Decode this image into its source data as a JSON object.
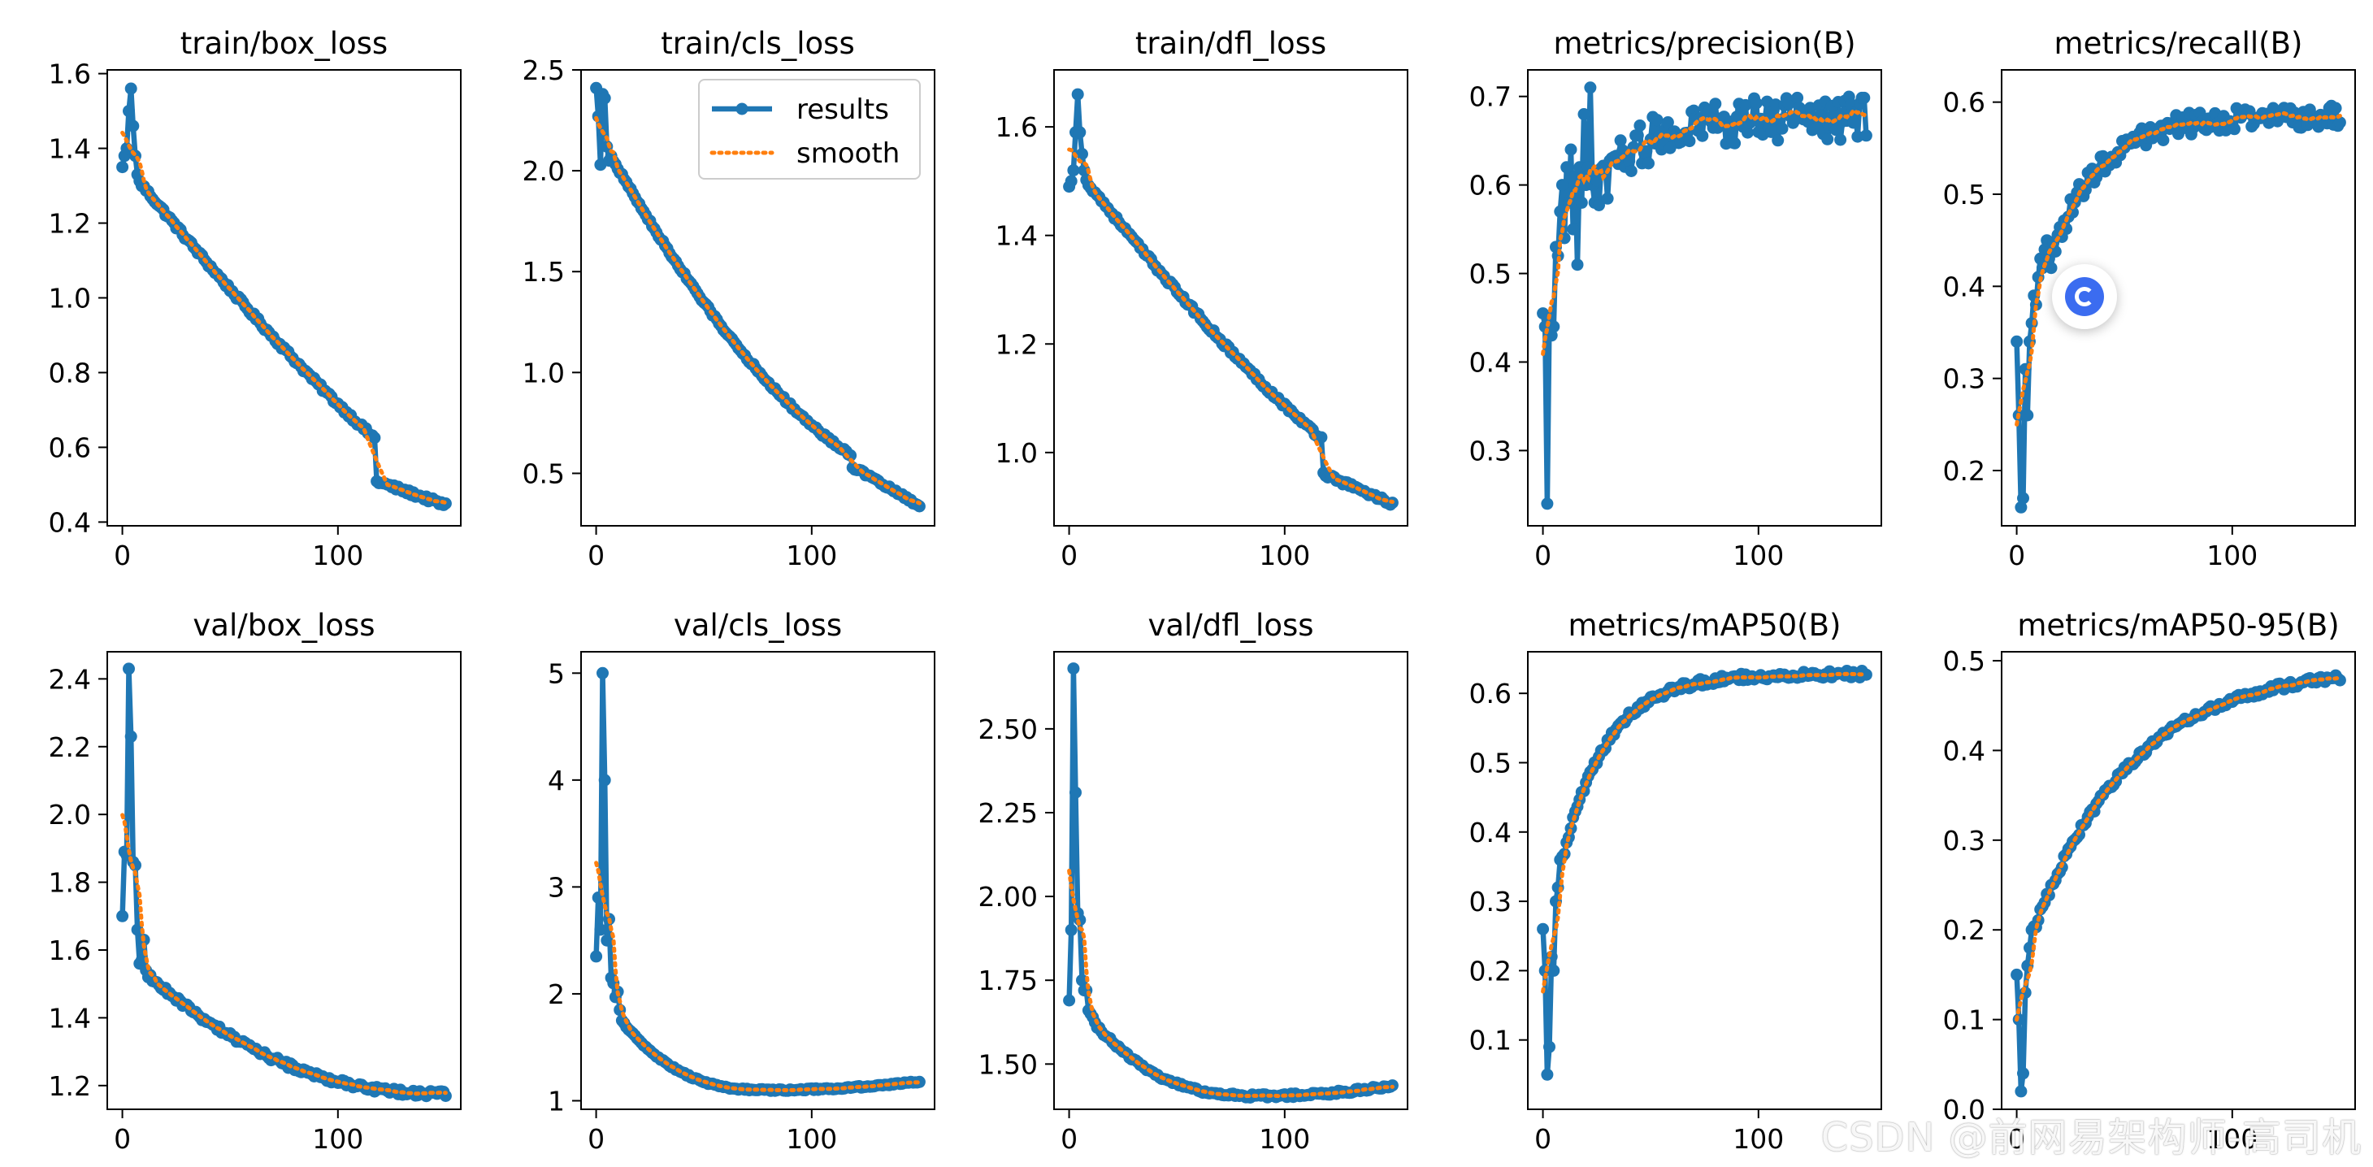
{
  "figure": {
    "legend_results": "results",
    "legend_smooth": "smooth",
    "watermark": "CSDN @前网易架构师-高司机",
    "colors": {
      "results": "#1f77b4",
      "smooth": "#ff7f0e",
      "axis": "#000000",
      "background": "#ffffff"
    }
  },
  "chart_data": [
    {
      "type": "line",
      "title": "train/box_loss",
      "xlim": [
        -7,
        157
      ],
      "ylim": [
        0.39,
        1.61
      ],
      "xticks": [
        0,
        100
      ],
      "yticks": [
        0.4,
        0.6,
        0.8,
        1.0,
        1.2,
        1.4,
        1.6
      ],
      "ytick_labels": [
        "0.4",
        "0.6",
        "0.8",
        "1.0",
        "1.2",
        "1.4",
        "1.6"
      ],
      "spikes": [
        [
          0,
          1.35
        ],
        [
          1,
          1.38
        ],
        [
          2,
          1.4
        ],
        [
          3,
          1.5
        ],
        [
          4,
          1.56
        ],
        [
          5,
          1.46
        ],
        [
          6,
          1.38
        ],
        [
          7,
          1.33
        ]
      ],
      "gen": {
        "kind": "decay",
        "x0": 8,
        "x1": 150,
        "y0": 1.31,
        "y1": 0.445,
        "p": 0.82,
        "step": 118,
        "drop": 0.04,
        "noise": 0.006
      }
    },
    {
      "type": "line",
      "title": "train/cls_loss",
      "legend": true,
      "xlim": [
        -7,
        157
      ],
      "ylim": [
        0.24,
        2.5
      ],
      "xticks": [
        0,
        100
      ],
      "yticks": [
        0.5,
        1.0,
        1.5,
        2.0,
        2.5
      ],
      "ytick_labels": [
        "0.5",
        "1.0",
        "1.5",
        "2.0",
        "2.5"
      ],
      "spikes": [
        [
          0,
          2.41
        ],
        [
          1,
          2.27
        ],
        [
          2,
          2.03
        ],
        [
          3,
          2.38
        ],
        [
          4,
          2.36
        ],
        [
          5,
          2.12
        ],
        [
          6,
          2.05
        ]
      ],
      "gen": {
        "kind": "decay",
        "x0": 7,
        "x1": 150,
        "y0": 2.07,
        "y1": 0.34,
        "p": 0.6,
        "step": 119,
        "drop": 0.12,
        "noise": 0.008
      }
    },
    {
      "type": "line",
      "title": "train/dfl_loss",
      "xlim": [
        -7,
        157
      ],
      "ylim": [
        0.865,
        1.705
      ],
      "xticks": [
        0,
        100
      ],
      "yticks": [
        1.0,
        1.2,
        1.4,
        1.6
      ],
      "ytick_labels": [
        "1.0",
        "1.2",
        "1.4",
        "1.6"
      ],
      "spikes": [
        [
          0,
          1.49
        ],
        [
          1,
          1.5
        ],
        [
          2,
          1.52
        ],
        [
          3,
          1.59
        ],
        [
          4,
          1.66
        ],
        [
          5,
          1.59
        ],
        [
          6,
          1.55
        ],
        [
          7,
          1.52
        ]
      ],
      "gen": {
        "kind": "decay",
        "x0": 8,
        "x1": 150,
        "y0": 1.5,
        "y1": 0.905,
        "p": 0.78,
        "step": 118,
        "drop": 0.035,
        "noise": 0.004
      }
    },
    {
      "type": "line",
      "title": "metrics/precision(B)",
      "xlim": [
        -7,
        157
      ],
      "ylim": [
        0.215,
        0.73
      ],
      "xticks": [
        0,
        100
      ],
      "yticks": [
        0.3,
        0.4,
        0.5,
        0.6,
        0.7
      ],
      "ytick_labels": [
        "0.3",
        "0.4",
        "0.5",
        "0.6",
        "0.7"
      ],
      "spikes": [
        [
          0,
          0.455
        ],
        [
          1,
          0.44
        ],
        [
          2,
          0.24
        ],
        [
          3,
          0.45
        ],
        [
          4,
          0.43
        ],
        [
          5,
          0.44
        ],
        [
          6,
          0.53
        ],
        [
          7,
          0.52
        ],
        [
          8,
          0.57
        ],
        [
          9,
          0.6
        ],
        [
          10,
          0.54
        ],
        [
          11,
          0.62
        ],
        [
          12,
          0.58
        ],
        [
          13,
          0.64
        ],
        [
          14,
          0.55
        ],
        [
          15,
          0.61
        ],
        [
          16,
          0.51
        ],
        [
          17,
          0.62
        ],
        [
          18,
          0.58
        ],
        [
          19,
          0.68
        ],
        [
          20,
          0.6
        ],
        [
          21,
          0.62
        ],
        [
          22,
          0.71
        ],
        [
          23,
          0.6
        ],
        [
          24,
          0.58
        ]
      ],
      "gen": {
        "kind": "rise",
        "x0": 25,
        "x1": 150,
        "y0": 0.59,
        "y1": 0.675,
        "k": 0.05,
        "noise": 0.025
      }
    },
    {
      "type": "line",
      "title": "metrics/recall(B)",
      "xlim": [
        -7,
        157
      ],
      "ylim": [
        0.14,
        0.635
      ],
      "xticks": [
        0,
        100
      ],
      "yticks": [
        0.2,
        0.3,
        0.4,
        0.5,
        0.6
      ],
      "ytick_labels": [
        "0.2",
        "0.3",
        "0.4",
        "0.5",
        "0.6"
      ],
      "spikes": [
        [
          0,
          0.34
        ],
        [
          1,
          0.26
        ],
        [
          2,
          0.16
        ],
        [
          3,
          0.17
        ],
        [
          4,
          0.31
        ],
        [
          5,
          0.26
        ],
        [
          6,
          0.34
        ],
        [
          7,
          0.36
        ],
        [
          8,
          0.39
        ],
        [
          9,
          0.38
        ],
        [
          10,
          0.41
        ],
        [
          11,
          0.43
        ],
        [
          12,
          0.42
        ],
        [
          13,
          0.44
        ],
        [
          14,
          0.45
        ],
        [
          15,
          0.43
        ],
        [
          16,
          0.42
        ]
      ],
      "gen": {
        "kind": "rise",
        "x0": 17,
        "x1": 150,
        "y0": 0.44,
        "y1": 0.585,
        "k": 0.045,
        "noise": 0.012
      }
    },
    {
      "type": "line",
      "title": "val/box_loss",
      "xlim": [
        -7,
        157
      ],
      "ylim": [
        1.13,
        2.48
      ],
      "xticks": [
        0,
        100
      ],
      "yticks": [
        1.2,
        1.4,
        1.6,
        1.8,
        2.0,
        2.2,
        2.4
      ],
      "ytick_labels": [
        "1.2",
        "1.4",
        "1.6",
        "1.8",
        "2.0",
        "2.2",
        "2.4"
      ],
      "spikes": [
        [
          0,
          1.7
        ],
        [
          1,
          1.89
        ],
        [
          2,
          1.88
        ],
        [
          3,
          2.43
        ],
        [
          4,
          2.23
        ],
        [
          5,
          1.86
        ],
        [
          6,
          1.85
        ],
        [
          7,
          1.66
        ],
        [
          8,
          1.56
        ],
        [
          9,
          1.57
        ],
        [
          10,
          1.63
        ],
        [
          11,
          1.54
        ],
        [
          12,
          1.52
        ]
      ],
      "gen": {
        "kind": "decay",
        "x0": 13,
        "x1": 150,
        "y0": 1.52,
        "y1": 1.175,
        "p": 0.45,
        "noise": 0.008
      }
    },
    {
      "type": "line",
      "title": "val/cls_loss",
      "xlim": [
        -7,
        157
      ],
      "ylim": [
        0.92,
        5.2
      ],
      "xticks": [
        0,
        100
      ],
      "yticks": [
        1,
        2,
        3,
        4,
        5
      ],
      "ytick_labels": [
        "1",
        "2",
        "3",
        "4",
        "5"
      ],
      "spikes": [
        [
          0,
          2.35
        ],
        [
          1,
          2.9
        ],
        [
          2,
          2.6
        ],
        [
          3,
          5.0
        ],
        [
          4,
          4.0
        ],
        [
          5,
          2.5
        ],
        [
          6,
          2.7
        ],
        [
          7,
          2.15
        ],
        [
          8,
          2.1
        ],
        [
          9,
          1.97
        ],
        [
          10,
          2.02
        ],
        [
          11,
          1.85
        ],
        [
          12,
          1.75
        ]
      ],
      "gen": {
        "kind": "valley",
        "x0": 13,
        "x1": 150,
        "y0": 1.72,
        "ymin": 1.1,
        "xmin": 80,
        "y1": 1.18,
        "noise": 0.008
      }
    },
    {
      "type": "line",
      "title": "val/dfl_loss",
      "xlim": [
        -7,
        157
      ],
      "ylim": [
        1.365,
        2.73
      ],
      "xticks": [
        0,
        100
      ],
      "yticks": [
        1.5,
        1.75,
        2.0,
        2.25,
        2.5
      ],
      "ytick_labels": [
        "1.50",
        "1.75",
        "2.00",
        "2.25",
        "2.50"
      ],
      "spikes": [
        [
          0,
          1.69
        ],
        [
          1,
          1.9
        ],
        [
          2,
          2.68
        ],
        [
          3,
          2.31
        ],
        [
          4,
          1.95
        ],
        [
          5,
          1.93
        ],
        [
          6,
          1.75
        ],
        [
          7,
          1.72
        ],
        [
          8,
          1.72
        ],
        [
          9,
          1.66
        ],
        [
          10,
          1.65
        ],
        [
          11,
          1.64
        ]
      ],
      "gen": {
        "kind": "valley",
        "x0": 12,
        "x1": 150,
        "y0": 1.62,
        "ymin": 1.405,
        "xmin": 88,
        "y1": 1.435,
        "noise": 0.005
      }
    },
    {
      "type": "line",
      "title": "metrics/mAP50(B)",
      "xlim": [
        -7,
        157
      ],
      "ylim": [
        0.0,
        0.66
      ],
      "xticks": [
        0,
        100
      ],
      "yticks": [
        0.1,
        0.2,
        0.3,
        0.4,
        0.5,
        0.6
      ],
      "ytick_labels": [
        "0.1",
        "0.2",
        "0.3",
        "0.4",
        "0.5",
        "0.6"
      ],
      "spikes": [
        [
          0,
          0.26
        ],
        [
          1,
          0.2
        ],
        [
          2,
          0.05
        ],
        [
          3,
          0.09
        ],
        [
          4,
          0.22
        ],
        [
          5,
          0.2
        ],
        [
          6,
          0.3
        ],
        [
          7,
          0.32
        ],
        [
          8,
          0.36
        ]
      ],
      "gen": {
        "kind": "rise",
        "x0": 9,
        "x1": 150,
        "y0": 0.36,
        "y1": 0.628,
        "k": 0.048,
        "noise": 0.005
      }
    },
    {
      "type": "line",
      "title": "metrics/mAP50-95(B)",
      "xlim": [
        -7,
        157
      ],
      "ylim": [
        0.0,
        0.51
      ],
      "xticks": [
        0,
        100
      ],
      "yticks": [
        0.0,
        0.1,
        0.2,
        0.3,
        0.4,
        0.5
      ],
      "ytick_labels": [
        "0.0",
        "0.1",
        "0.2",
        "0.3",
        "0.4",
        "0.5"
      ],
      "spikes": [
        [
          0,
          0.15
        ],
        [
          1,
          0.1
        ],
        [
          2,
          0.02
        ],
        [
          3,
          0.04
        ],
        [
          4,
          0.13
        ],
        [
          5,
          0.16
        ],
        [
          6,
          0.18
        ],
        [
          7,
          0.2
        ]
      ],
      "gen": {
        "kind": "rise",
        "x0": 8,
        "x1": 150,
        "y0": 0.2,
        "y1": 0.495,
        "k": 0.022,
        "noise": 0.004
      }
    }
  ]
}
